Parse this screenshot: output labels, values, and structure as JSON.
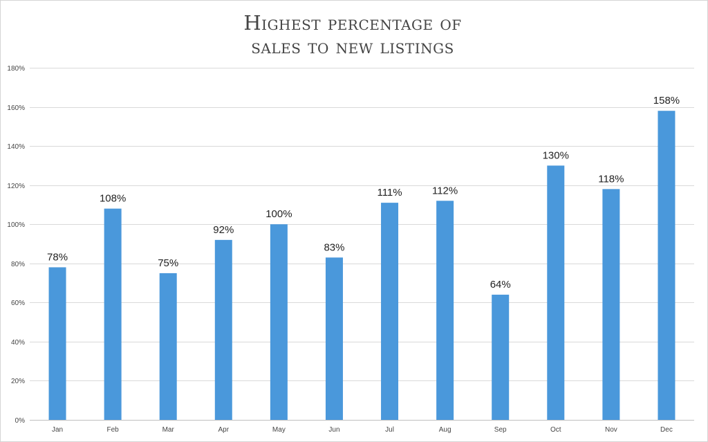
{
  "chart_data": {
    "type": "bar",
    "title_lines": [
      "Highest percentage of",
      "sales to new listings"
    ],
    "xlabel": "",
    "ylabel": "",
    "categories": [
      "Jan",
      "Feb",
      "Mar",
      "Apr",
      "May",
      "Jun",
      "Jul",
      "Aug",
      "Sep",
      "Oct",
      "Nov",
      "Dec"
    ],
    "values": [
      78,
      108,
      75,
      92,
      100,
      83,
      111,
      112,
      64,
      130,
      118,
      158
    ],
    "data_labels": [
      "78%",
      "108%",
      "75%",
      "92%",
      "100%",
      "83%",
      "111%",
      "112%",
      "64%",
      "130%",
      "118%",
      "158%"
    ],
    "ylim": [
      0,
      180
    ],
    "yticks": [
      0,
      20,
      40,
      60,
      80,
      100,
      120,
      140,
      160,
      180
    ],
    "ytick_labels": [
      "0%",
      "20%",
      "40%",
      "60%",
      "80%",
      "100%",
      "120%",
      "140%",
      "160%",
      "180%"
    ],
    "grid": true,
    "legend": "none",
    "colors": {
      "bar": "#4a98db"
    }
  }
}
